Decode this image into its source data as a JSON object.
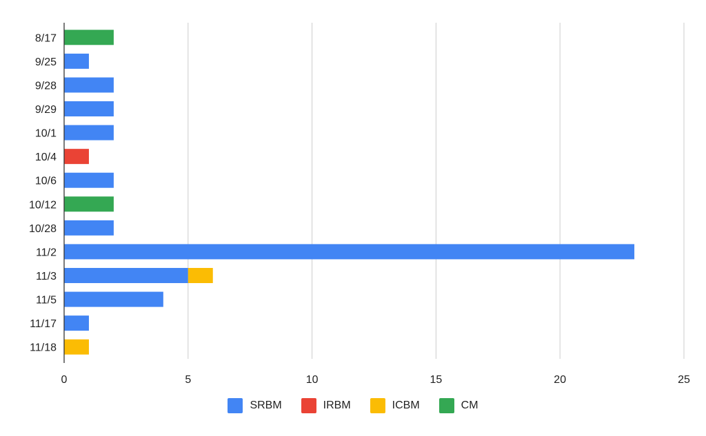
{
  "chart_data": {
    "type": "bar",
    "orientation": "horizontal",
    "stacked": true,
    "categories": [
      "8/17",
      "9/25",
      "9/28",
      "9/29",
      "10/1",
      "10/4",
      "10/6",
      "10/12",
      "10/28",
      "11/2",
      "11/3",
      "11/5",
      "11/17",
      "11/18"
    ],
    "series": [
      {
        "name": "SRBM",
        "color": "#4285F4",
        "values": [
          0,
          1,
          2,
          2,
          2,
          0,
          2,
          0,
          2,
          23,
          5,
          4,
          1,
          0
        ]
      },
      {
        "name": "IRBM",
        "color": "#EA4335",
        "values": [
          0,
          0,
          0,
          0,
          0,
          1,
          0,
          0,
          0,
          0,
          0,
          0,
          0,
          0
        ]
      },
      {
        "name": "ICBM",
        "color": "#FBBC04",
        "values": [
          0,
          0,
          0,
          0,
          0,
          0,
          0,
          0,
          0,
          0,
          1,
          0,
          0,
          1
        ]
      },
      {
        "name": "CM",
        "color": "#34A853",
        "values": [
          2,
          0,
          0,
          0,
          0,
          0,
          0,
          2,
          0,
          0,
          0,
          0,
          0,
          0
        ]
      }
    ],
    "xlim": [
      0,
      25
    ],
    "xticks": [
      0,
      5,
      10,
      15,
      20,
      25
    ],
    "grid": true,
    "legend_position": "bottom"
  }
}
